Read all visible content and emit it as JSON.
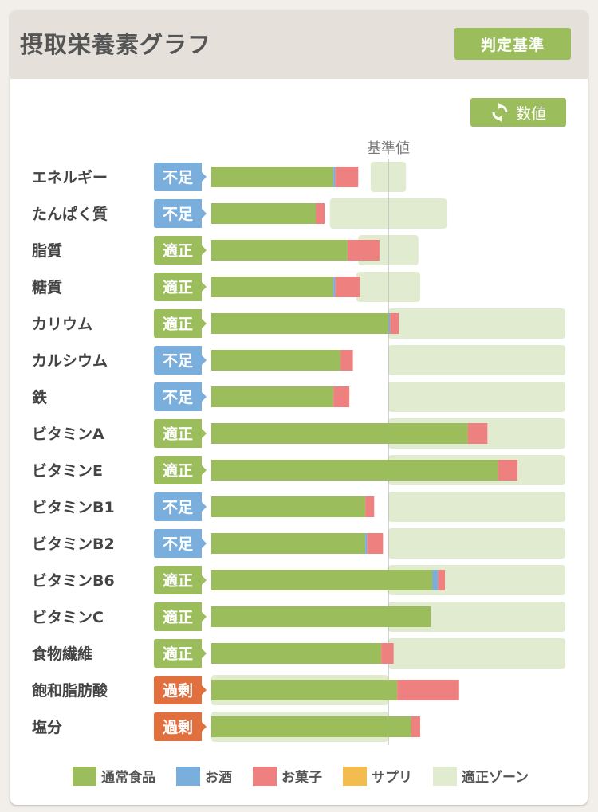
{
  "header": {
    "title": "摂取栄養素グラフ",
    "criteria_button": "判定基準"
  },
  "toolbar": {
    "value_toggle_label": "数値",
    "value_toggle_icon": "refresh-icon"
  },
  "colors": {
    "normal_food": "#9cbd5c",
    "alcohol": "#7aaedc",
    "snacks": "#ef8080",
    "supplement": "#f2bc4f",
    "zone": "#e0ebcf",
    "status_shortage": "#7aaedc",
    "status_adequate": "#9cbd5c",
    "status_excess": "#e2703f"
  },
  "chart_data": {
    "type": "bar",
    "orientation": "horizontal",
    "stacked": true,
    "reference_label": "基準値",
    "unit": "percent_of_reference",
    "categories": [
      "エネルギー",
      "たんぱく質",
      "脂質",
      "糖質",
      "カリウム",
      "カルシウム",
      "鉄",
      "ビタミンA",
      "ビタミンE",
      "ビタミンB1",
      "ビタミンB2",
      "ビタミンB6",
      "ビタミンC",
      "食物繊維",
      "飽和脂肪酸",
      "塩分"
    ],
    "status": [
      "不足",
      "不足",
      "適正",
      "適正",
      "適正",
      "不足",
      "不足",
      "適正",
      "適正",
      "不足",
      "不足",
      "適正",
      "適正",
      "適正",
      "過剰",
      "過剰"
    ],
    "series": [
      {
        "name": "通常食品",
        "values": [
          69,
          59,
          77,
          69,
          100,
          73,
          69,
          145,
          162,
          87,
          87,
          125,
          124,
          96,
          105,
          113
        ]
      },
      {
        "name": "お酒",
        "values": [
          1,
          0,
          0,
          1,
          1,
          0,
          0,
          0,
          0,
          0,
          1,
          3,
          0,
          0,
          0,
          0
        ]
      },
      {
        "name": "お菓子",
        "values": [
          13,
          5,
          18,
          14,
          5,
          7,
          9,
          11,
          11,
          5,
          9,
          4,
          0,
          7,
          35,
          5
        ]
      },
      {
        "name": "サプリ",
        "values": [
          0,
          0,
          0,
          0,
          0,
          0,
          0,
          0,
          0,
          0,
          0,
          0,
          0,
          0,
          0,
          0
        ]
      }
    ],
    "zones": [
      [
        90,
        110
      ],
      [
        67,
        133
      ],
      [
        83,
        117
      ],
      [
        82,
        118
      ],
      [
        100,
        200
      ],
      [
        100,
        200
      ],
      [
        100,
        200
      ],
      [
        100,
        200
      ],
      [
        100,
        200
      ],
      [
        100,
        200
      ],
      [
        100,
        200
      ],
      [
        100,
        200
      ],
      [
        100,
        200
      ],
      [
        100,
        200
      ],
      [
        0,
        100
      ],
      [
        0,
        100
      ]
    ],
    "xlim": [
      0,
      200
    ],
    "legend": [
      "通常食品",
      "お酒",
      "お菓子",
      "サプリ",
      "適正ゾーン"
    ],
    "legend_position": "bottom"
  }
}
